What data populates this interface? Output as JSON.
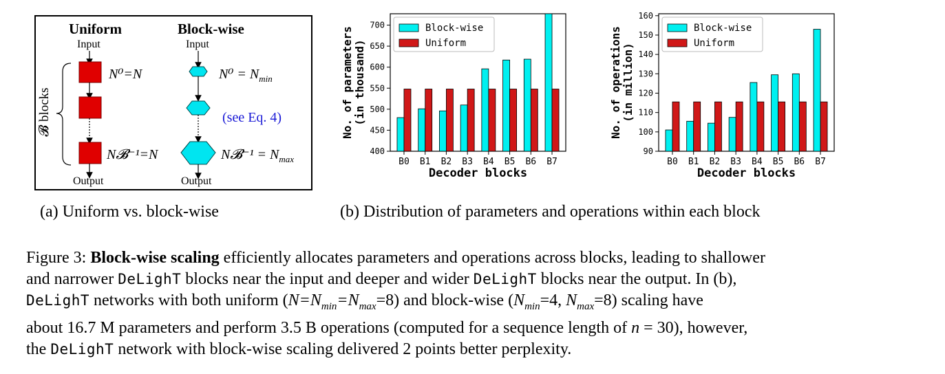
{
  "panel_a": {
    "uniform_title": "Uniform",
    "blockwise_title": "Block-wise",
    "input_label": "Input",
    "output_label": "Output",
    "b_blocks_label": "𝓑 blocks",
    "uniform_first": "N⁰=N",
    "uniform_last": "N𝓑⁻¹=N",
    "blockwise_first": "N⁰ = N",
    "blockwise_first_sub": "min",
    "blockwise_last": "N𝓑⁻¹ = N",
    "blockwise_last_sub": "max",
    "eq_ref": "(see Eq. 4)",
    "colors": {
      "uniform_block": "#e00000",
      "blockwise_block": "#00e5f0"
    }
  },
  "subcaption_a": "(a) Uniform vs. block-wise",
  "subcaption_b": "(b) Distribution of parameters and operations within each block",
  "chart_data": [
    {
      "type": "bar",
      "categories": [
        "B0",
        "B1",
        "B2",
        "B3",
        "B4",
        "B5",
        "B6",
        "B7"
      ],
      "series": [
        {
          "name": "Block-wise",
          "color": "#00f0f0",
          "values": [
            480,
            501,
            496,
            510,
            596,
            617,
            619,
            727
          ]
        },
        {
          "name": "Uniform",
          "color": "#d01818",
          "values": [
            548,
            548,
            548,
            548,
            548,
            548,
            548,
            548
          ]
        }
      ],
      "xlabel": "Decoder blocks",
      "ylabel_line1": "No. of parameters",
      "ylabel_line2": "(in thousand)",
      "ylim": [
        400,
        727
      ],
      "yticks": [
        400,
        450,
        500,
        550,
        600,
        650,
        700
      ],
      "legend": "top-left"
    },
    {
      "type": "bar",
      "categories": [
        "B0",
        "B1",
        "B2",
        "B3",
        "B4",
        "B5",
        "B6",
        "B7"
      ],
      "series": [
        {
          "name": "Block-wise",
          "color": "#00f0f0",
          "values": [
            101,
            105.5,
            104.5,
            107.5,
            125.5,
            129.5,
            130,
            153
          ]
        },
        {
          "name": "Uniform",
          "color": "#d01818",
          "values": [
            115.5,
            115.5,
            115.5,
            115.5,
            115.5,
            115.5,
            115.5,
            115.5
          ]
        }
      ],
      "xlabel": "Decoder blocks",
      "ylabel_line1": "No. of operations",
      "ylabel_line2": "(in million)",
      "ylim": [
        90,
        161
      ],
      "yticks": [
        90,
        100,
        110,
        120,
        130,
        140,
        150,
        160
      ],
      "legend": "top-left"
    }
  ],
  "caption": {
    "prefix": "Figure 3: ",
    "bold": "Block-wise scaling",
    "t1": " efficiently allocates parameters and operations across blocks, leading to shallower",
    "t2a": "and narrower ",
    "model": "DeLighT",
    "t2b": " blocks near the input and deeper and wider ",
    "t2c": " blocks near the output. In (b),",
    "t3a": " networks with both uniform (",
    "t3_uniform_math": "N=N",
    "t3_min": "min",
    "t3_eq": "=N",
    "t3_max": "max",
    "t3_val": "=8) and block-wise (",
    "t3_bw_n": "N",
    "t3_bw_val1": "=4, ",
    "t3_bw_val2": "=8) scaling have",
    "t4a": "about 16.7 M parameters and perform 3.5 B operations (computed for a sequence length of ",
    "t4_n": "n",
    "t4b": " = 30), however,",
    "t5a": "the ",
    "t5b": " network with block-wise scaling delivered 2 points better perplexity."
  }
}
